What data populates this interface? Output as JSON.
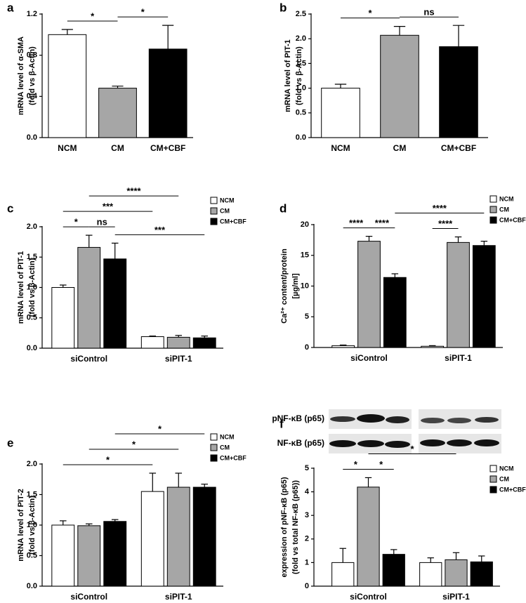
{
  "chart_data": [
    {
      "type": "bar",
      "panel": "a",
      "ylabel": [
        "mRNA level of α-SMA",
        "(fold vs β-Actin)"
      ],
      "categories": [
        "NCM",
        "CM",
        "CM+CBF"
      ],
      "values": [
        1.0,
        0.48,
        0.86
      ],
      "errors": [
        0.05,
        0.02,
        0.23
      ],
      "colors": [
        "#ffffff",
        "#a6a6a6",
        "#000000"
      ],
      "ylim": [
        0,
        1.2
      ],
      "yticks": [
        {
          "value": 0,
          "label": "0.0"
        },
        0.4,
        0.8,
        1.2
      ],
      "significance": [
        {
          "between": [
            0,
            1
          ],
          "label": "*"
        },
        {
          "between": [
            1,
            2
          ],
          "label": "*"
        }
      ]
    },
    {
      "type": "bar",
      "panel": "b",
      "ylabel": [
        "mRNA level of PIT-1",
        "(fold vs β-Actin)"
      ],
      "categories": [
        "NCM",
        "CM",
        "CM+CBF"
      ],
      "values": [
        1.0,
        2.07,
        1.84
      ],
      "errors": [
        0.08,
        0.18,
        0.43
      ],
      "colors": [
        "#ffffff",
        "#a6a6a6",
        "#000000"
      ],
      "ylim": [
        0,
        2.5
      ],
      "yticks": [
        {
          "value": 0,
          "label": "0.0"
        },
        0.5,
        {
          "value": 1,
          "label": "1.0"
        },
        1.5,
        {
          "value": 2,
          "label": "2.0"
        },
        2.5
      ],
      "significance": [
        {
          "between": [
            0,
            1
          ],
          "label": "*"
        },
        {
          "between": [
            1,
            2
          ],
          "label": "ns"
        }
      ]
    },
    {
      "type": "grouped_bar",
      "panel": "c",
      "ylabel": [
        "mRNA level of PIT-1",
        "(fold vs β-Actin)"
      ],
      "categories": [
        "siControl",
        "siPIT-1"
      ],
      "series": [
        {
          "name": "NCM",
          "color": "#ffffff",
          "values": [
            1.0,
            0.19
          ],
          "errors": [
            0.04,
            0.01
          ]
        },
        {
          "name": "CM",
          "color": "#a6a6a6",
          "values": [
            1.66,
            0.18
          ],
          "errors": [
            0.2,
            0.03
          ]
        },
        {
          "name": "CM+CBF",
          "color": "#000000",
          "values": [
            1.47,
            0.17
          ],
          "errors": [
            0.26,
            0.03
          ]
        }
      ],
      "ylim": [
        0,
        2.0
      ],
      "yticks": [
        {
          "value": 0,
          "label": "0.0"
        },
        0.5,
        {
          "value": 1,
          "label": "1.0"
        },
        1.5,
        {
          "value": 2,
          "label": "2.0"
        }
      ],
      "significance": [
        {
          "between": [
            [
              0,
              0
            ],
            [
              1,
              0
            ]
          ],
          "label": "*"
        },
        {
          "between": [
            [
              1,
              0
            ],
            [
              2,
              0
            ]
          ],
          "label": "ns"
        },
        {
          "between": [
            [
              0,
              0
            ],
            [
              0,
              1
            ]
          ],
          "label": "***"
        },
        {
          "between": [
            [
              1,
              0
            ],
            [
              1,
              1
            ]
          ],
          "label": "****"
        },
        {
          "between": [
            [
              2,
              0
            ],
            [
              2,
              1
            ]
          ],
          "label": "***"
        }
      ]
    },
    {
      "type": "grouped_bar",
      "panel": "d",
      "ylabel": [
        "Ca²⁺ content/protein",
        "[µg/ml]"
      ],
      "categories": [
        "siControl",
        "siPIT-1"
      ],
      "series": [
        {
          "name": "NCM",
          "color": "#ffffff",
          "values": [
            0.3,
            0.2
          ],
          "errors": [
            0.1,
            0.1
          ]
        },
        {
          "name": "CM",
          "color": "#a6a6a6",
          "values": [
            17.3,
            17.1
          ],
          "errors": [
            0.8,
            0.9
          ]
        },
        {
          "name": "CM+CBF",
          "color": "#000000",
          "values": [
            11.4,
            16.6
          ],
          "errors": [
            0.6,
            0.7
          ]
        }
      ],
      "ylim": [
        0,
        20
      ],
      "yticks": [
        0,
        5,
        10,
        15,
        20
      ],
      "significance": [
        {
          "between": [
            [
              0,
              0
            ],
            [
              1,
              0
            ]
          ],
          "label": "****"
        },
        {
          "between": [
            [
              1,
              0
            ],
            [
              2,
              0
            ]
          ],
          "label": "****"
        },
        {
          "between": [
            [
              0,
              1
            ],
            [
              1,
              1
            ]
          ],
          "label": "****"
        },
        {
          "between": [
            [
              2,
              0
            ],
            [
              2,
              1
            ]
          ],
          "label": "****"
        }
      ]
    },
    {
      "type": "grouped_bar",
      "panel": "e",
      "ylabel": [
        "mRNA level of PIT-2",
        "(fold vs β-Actin)"
      ],
      "categories": [
        "siControl",
        "siPIT-1"
      ],
      "series": [
        {
          "name": "NCM",
          "color": "#ffffff",
          "values": [
            1.0,
            1.55
          ],
          "errors": [
            0.07,
            0.3
          ]
        },
        {
          "name": "CM",
          "color": "#a6a6a6",
          "values": [
            0.99,
            1.62
          ],
          "errors": [
            0.03,
            0.23
          ]
        },
        {
          "name": "CM+CBF",
          "color": "#000000",
          "values": [
            1.06,
            1.62
          ],
          "errors": [
            0.03,
            0.05
          ]
        }
      ],
      "ylim": [
        0,
        2.0
      ],
      "yticks": [
        {
          "value": 0,
          "label": "0.0"
        },
        0.5,
        {
          "value": 1,
          "label": "1.0"
        },
        1.5,
        {
          "value": 2,
          "label": "2.0"
        }
      ],
      "significance": [
        {
          "between": [
            [
              0,
              0
            ],
            [
              0,
              1
            ]
          ],
          "label": "*"
        },
        {
          "between": [
            [
              1,
              0
            ],
            [
              1,
              1
            ]
          ],
          "label": "*"
        },
        {
          "between": [
            [
              2,
              0
            ],
            [
              2,
              1
            ]
          ],
          "label": "*"
        }
      ]
    },
    {
      "type": "grouped_bar",
      "panel": "f",
      "ylabel": [
        "expression of pNF-κB (p65)",
        "(fold vs total NF-κB (p65))"
      ],
      "blot_labels": [
        "pNF-κB (p65)",
        "NF-κB (p65)"
      ],
      "categories": [
        "siControl",
        "siPIT-1"
      ],
      "series": [
        {
          "name": "NCM",
          "color": "#ffffff",
          "values": [
            1.0,
            1.0
          ],
          "errors": [
            0.6,
            0.2
          ]
        },
        {
          "name": "CM",
          "color": "#a6a6a6",
          "values": [
            4.2,
            1.12
          ],
          "errors": [
            0.4,
            0.3
          ]
        },
        {
          "name": "CM+CBF",
          "color": "#000000",
          "values": [
            1.35,
            1.03
          ],
          "errors": [
            0.2,
            0.25
          ]
        }
      ],
      "ylim": [
        0,
        5
      ],
      "yticks": [
        0,
        1,
        2,
        3,
        4,
        5
      ],
      "significance": [
        {
          "between": [
            [
              0,
              0
            ],
            [
              1,
              0
            ]
          ],
          "label": "*"
        },
        {
          "between": [
            [
              1,
              0
            ],
            [
              2,
              0
            ]
          ],
          "label": "*"
        },
        {
          "between": [
            [
              1,
              0
            ],
            [
              1,
              1
            ]
          ],
          "label": "*"
        }
      ]
    }
  ]
}
